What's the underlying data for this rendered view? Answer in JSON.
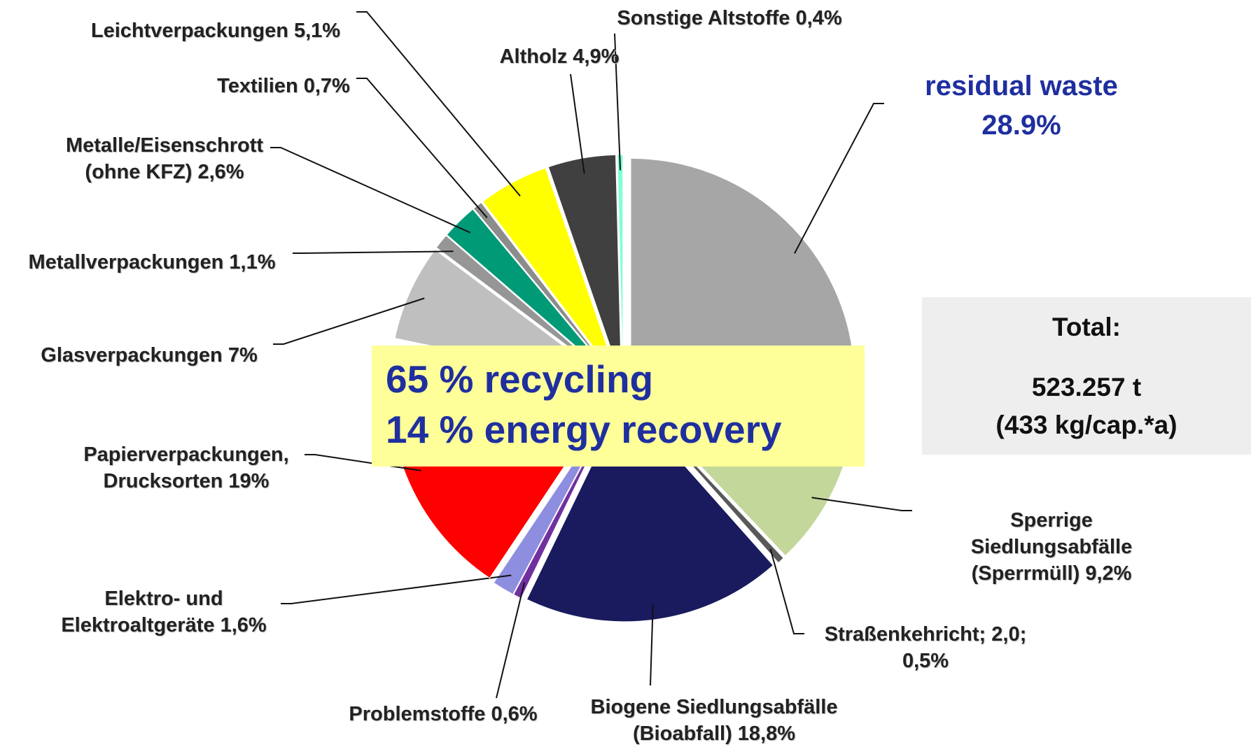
{
  "chart_data": {
    "type": "pie",
    "categories": [
      "residual waste",
      "Sperrige Siedlungsabfälle\n(Sperrmüll)",
      "Straßenkehricht; 2,0;",
      "Biogene Siedlungsabfälle\n(Bioabfall)",
      "Problemstoffe",
      "Elektro- und\nElektroaltgeräte",
      "Papierverpackungen,\nDrucksorten",
      "Glasverpackungen",
      "Metallverpackungen",
      "Metalle/Eisenschrott\n(ohne KFZ)",
      "Textilien",
      "Leichtverpackungen",
      "Altholz",
      "Sonstige Altstoffe"
    ],
    "values": [
      28.9,
      9.2,
      0.5,
      18.8,
      0.6,
      1.6,
      19,
      7,
      1.1,
      2.6,
      0.7,
      5.1,
      4.9,
      0.4
    ],
    "value_labels": [
      "28.9%",
      "9,2%",
      "0,5%",
      "18,8%",
      "0,6%",
      "1,6%",
      "19%",
      "7%",
      "1,1%",
      "2,6%",
      "0,7%",
      "5,1%",
      "4,9%",
      "0,4%"
    ],
    "colors": [
      "#a6a6a6",
      "#c4d79b",
      "#595959",
      "#1a1a5e",
      "#7030a0",
      "#8e8ee0",
      "#ff0000",
      "#bfbfbf",
      "#969696",
      "#009a77",
      "#8c8c8c",
      "#ffff00",
      "#404040",
      "#7fffd4"
    ],
    "annotations": {
      "recycling": "65 % recycling",
      "energy": "14 % energy recovery",
      "total_label": "Total:",
      "total_value": "523.257 t",
      "per_capita": "(433 kg/cap.*a)"
    }
  }
}
